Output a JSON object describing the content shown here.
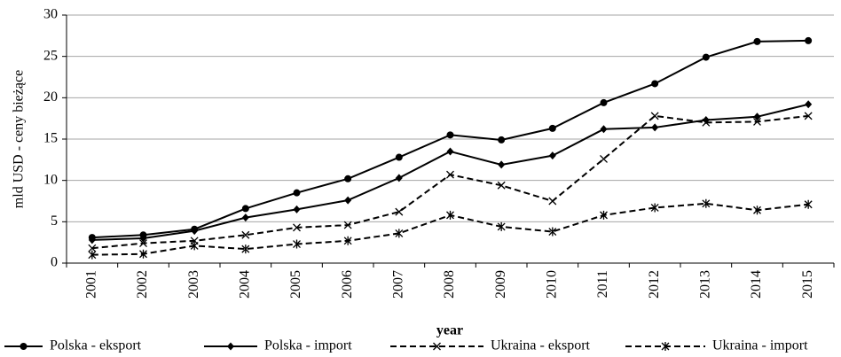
{
  "chart_data": {
    "type": "line",
    "x_label": "year",
    "y_label": "mld USD - ceny bieżące",
    "categories": [
      "2001",
      "2002",
      "2003",
      "2004",
      "2005",
      "2006",
      "2007",
      "2008",
      "2009",
      "2010",
      "2011",
      "2012",
      "2013",
      "2014",
      "2015"
    ],
    "series": [
      {
        "name": "Polska - eksport",
        "color": "#000000",
        "dash": "solid",
        "marker": "circle",
        "values": [
          3.1,
          3.4,
          4.1,
          6.6,
          8.5,
          10.2,
          12.8,
          15.5,
          14.9,
          16.3,
          19.4,
          21.7,
          24.9,
          26.8,
          26.9
        ]
      },
      {
        "name": "Polska - import",
        "color": "#000000",
        "dash": "solid",
        "marker": "diamond",
        "values": [
          2.8,
          3.0,
          3.9,
          5.5,
          6.5,
          7.6,
          10.3,
          13.5,
          11.9,
          13.0,
          16.2,
          16.4,
          17.3,
          17.7,
          19.2
        ]
      },
      {
        "name": "Ukraina - eksport",
        "color": "#000000",
        "dash": "dashed",
        "marker": "x",
        "values": [
          1.8,
          2.4,
          2.7,
          3.4,
          4.3,
          4.6,
          6.2,
          10.7,
          9.4,
          7.5,
          12.6,
          17.8,
          17.0,
          17.1,
          17.8
        ]
      },
      {
        "name": "Ukraina - import",
        "color": "#000000",
        "dash": "dashed",
        "marker": "star",
        "values": [
          1.0,
          1.1,
          2.1,
          1.7,
          2.3,
          2.7,
          3.6,
          5.8,
          4.4,
          3.8,
          5.8,
          6.7,
          7.2,
          6.4,
          7.1
        ]
      }
    ],
    "ylim": [
      0,
      30
    ],
    "yticks": [
      0,
      5,
      10,
      15,
      20,
      25,
      30
    ],
    "grid": true
  }
}
